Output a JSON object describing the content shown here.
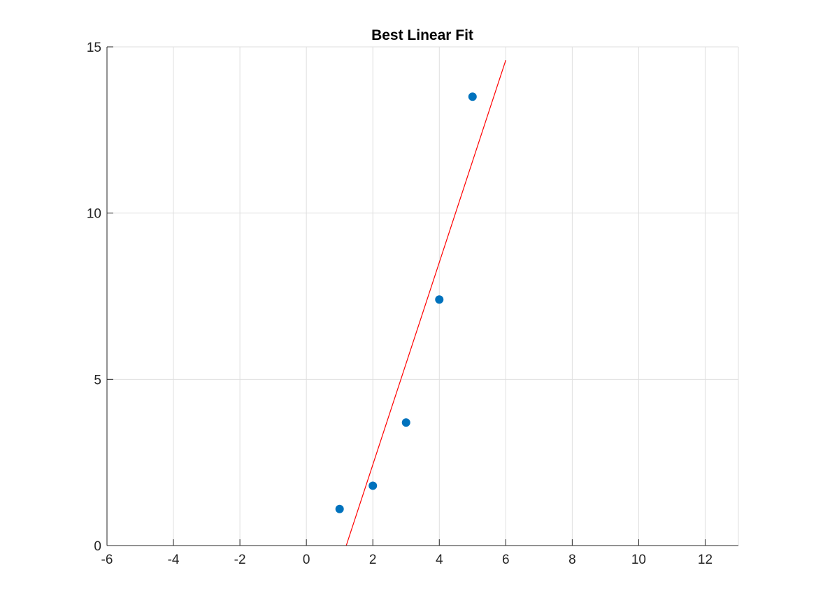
{
  "chart_data": {
    "type": "scatter",
    "title": "Best Linear Fit",
    "xlabel": "",
    "ylabel": "",
    "xlim": [
      -6,
      13
    ],
    "ylim": [
      0,
      15
    ],
    "xticks": [
      -6,
      -4,
      -2,
      0,
      2,
      4,
      6,
      8,
      10,
      12
    ],
    "yticks": [
      0,
      5,
      10,
      15
    ],
    "grid": true,
    "legend": "none",
    "series": [
      {
        "type": "scatter",
        "color": "#0072bd",
        "points": [
          {
            "x": 1,
            "y": 1.1
          },
          {
            "x": 2,
            "y": 1.8
          },
          {
            "x": 3,
            "y": 3.7
          },
          {
            "x": 4,
            "y": 7.4
          },
          {
            "x": 5,
            "y": 13.5
          }
        ]
      },
      {
        "type": "line",
        "color": "#ff0000",
        "points": [
          {
            "x": 1.2,
            "y": 0
          },
          {
            "x": 6,
            "y": 14.6
          }
        ]
      }
    ]
  }
}
